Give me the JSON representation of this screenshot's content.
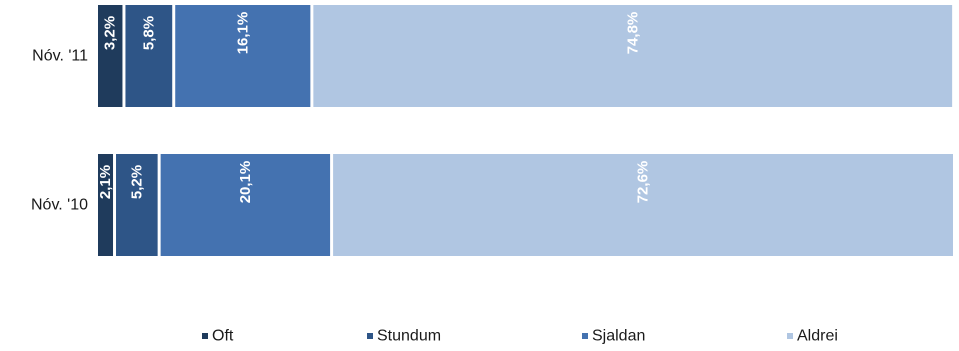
{
  "chart_data": {
    "type": "bar",
    "orientation": "horizontal",
    "stacked": true,
    "categories": [
      "Nóv. '11",
      "Nóv. '10"
    ],
    "series": [
      {
        "name": "Oft",
        "color": "#1f3b5c",
        "values": [
          3.2,
          2.1
        ],
        "labels": [
          "3,2%",
          "2,1%"
        ]
      },
      {
        "name": "Stundum",
        "color": "#2e5587",
        "values": [
          5.8,
          5.2
        ],
        "labels": [
          "5,8%",
          "5,2%"
        ]
      },
      {
        "name": "Sjaldan",
        "color": "#4472b0",
        "values": [
          16.1,
          20.1
        ],
        "labels": [
          "16,1%",
          "20,1%"
        ]
      },
      {
        "name": "Aldrei",
        "color": "#b0c6e2",
        "values": [
          74.8,
          72.6
        ],
        "labels": [
          "74,8%",
          "72,6%"
        ]
      }
    ],
    "xlim": [
      0,
      100
    ],
    "grid": false,
    "legend": "bottom"
  }
}
